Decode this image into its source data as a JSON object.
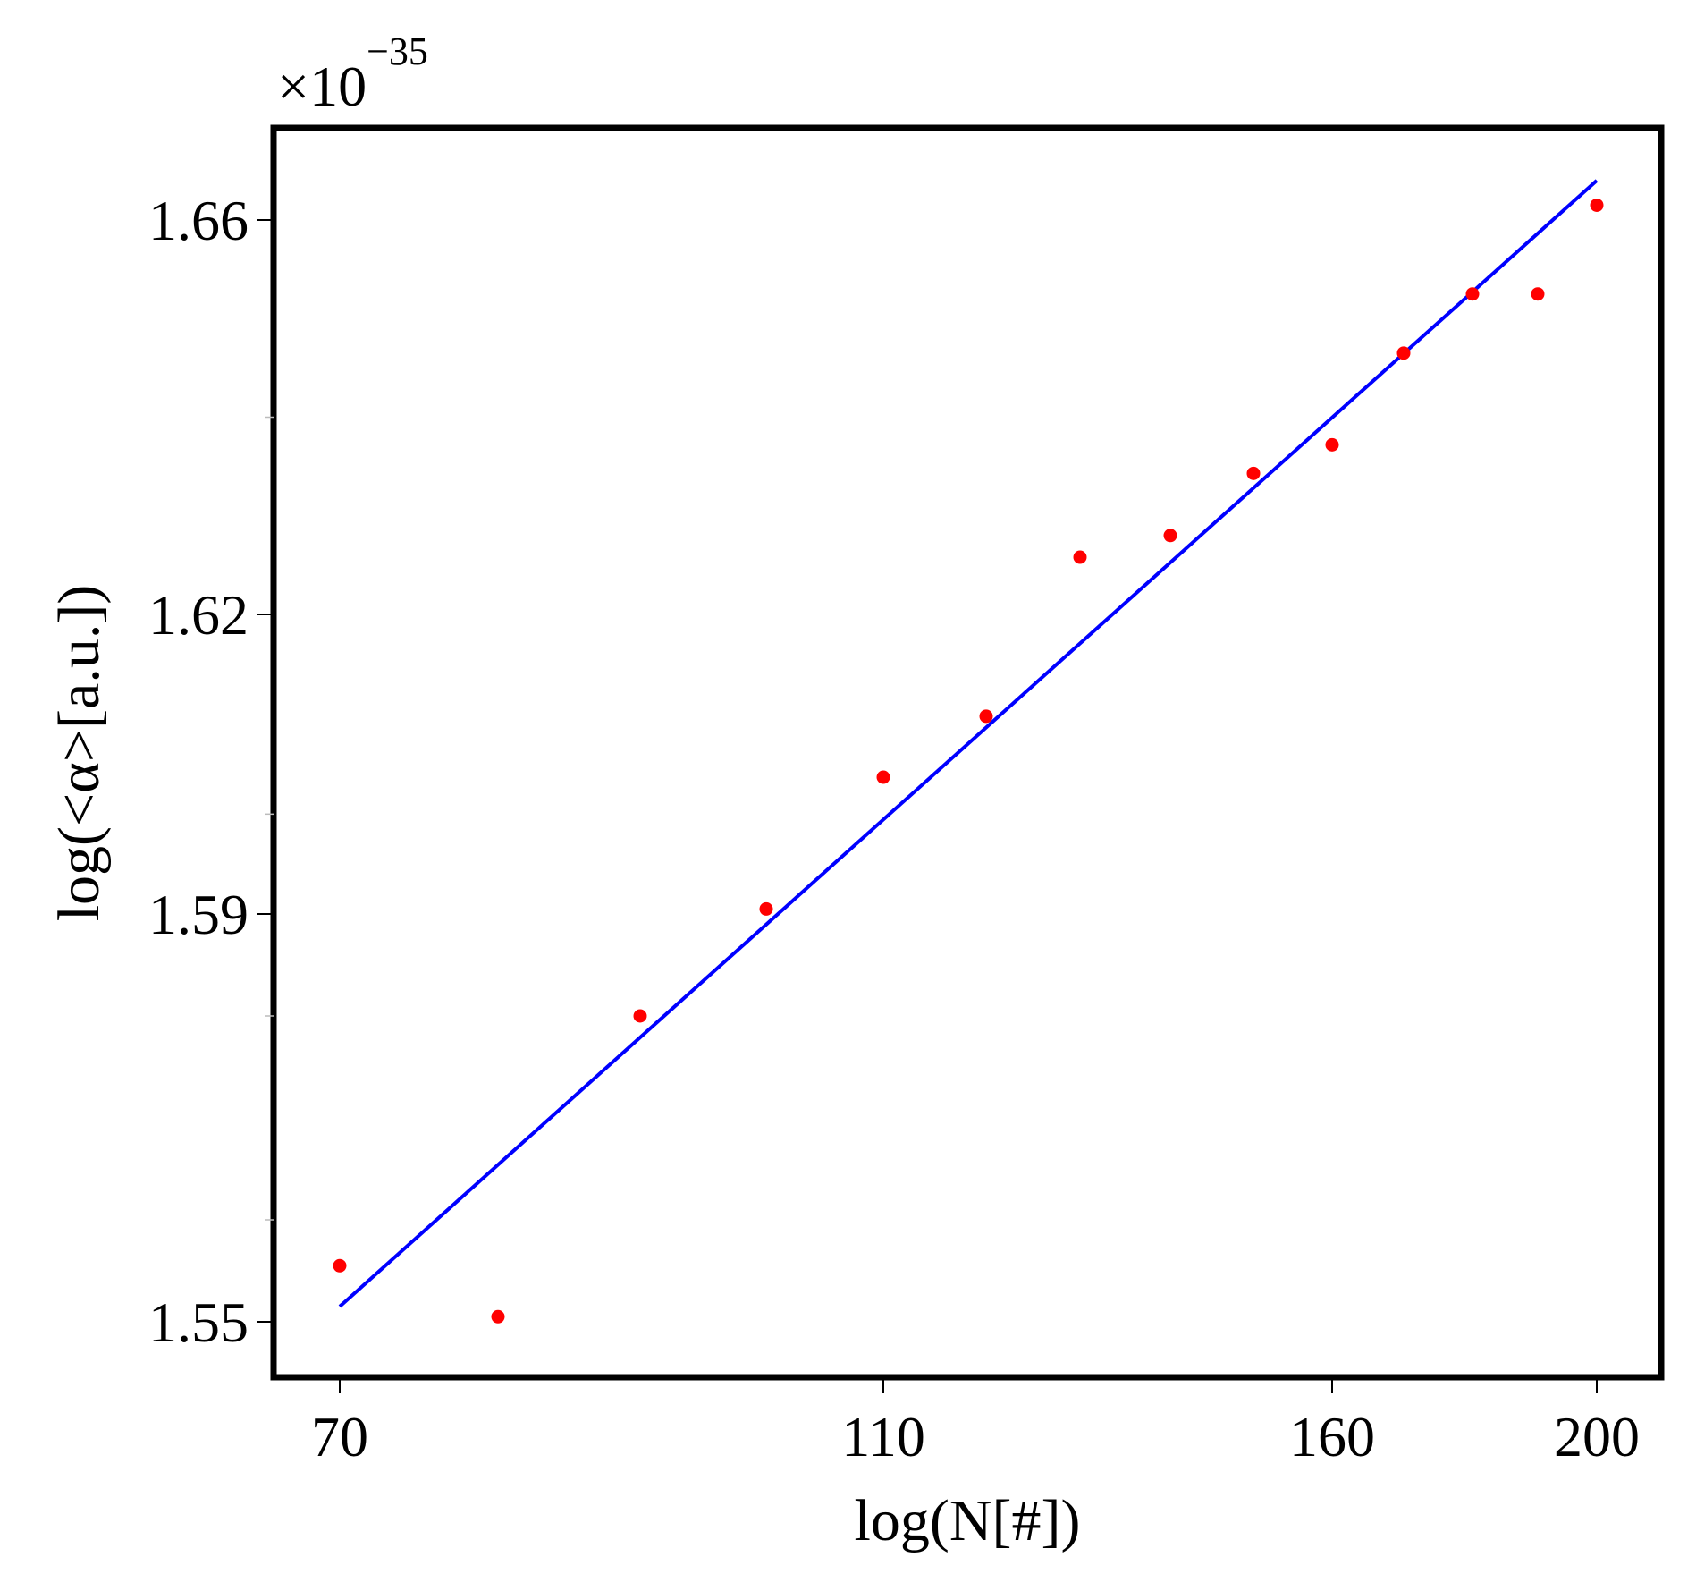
{
  "chart_data": {
    "type": "scatter",
    "title": "",
    "xlabel": "log(N[#])",
    "ylabel": "log(<α>[a.u.])",
    "y_multiplier": {
      "base": "×10",
      "exponent": "−35"
    },
    "x_tick_values": [
      70,
      110,
      160,
      200
    ],
    "x_ticks": [
      "70",
      "110",
      "160",
      "200"
    ],
    "y_tick_values": [
      1.55,
      1.59,
      1.62,
      1.66
    ],
    "y_ticks": [
      "1.55",
      "1.59",
      "1.62",
      "1.66"
    ],
    "y_minor_tick_values": [
      1.56,
      1.58,
      1.6,
      1.64
    ],
    "grid": false,
    "legend": "none",
    "series": [
      {
        "kind": "points",
        "color": "#ff0000",
        "points": [
          {
            "x": 70,
            "y": 1.5555
          },
          {
            "x": 82,
            "y": 1.5505
          },
          {
            "x": 92,
            "y": 1.58
          },
          {
            "x": 100,
            "y": 1.5905
          },
          {
            "x": 110,
            "y": 1.6037
          },
          {
            "x": 120,
            "y": 1.6098
          },
          {
            "x": 130,
            "y": 1.6258
          },
          {
            "x": 140,
            "y": 1.628
          },
          {
            "x": 150,
            "y": 1.6343
          },
          {
            "x": 160,
            "y": 1.6372
          },
          {
            "x": 170,
            "y": 1.6465
          },
          {
            "x": 180,
            "y": 1.6525
          },
          {
            "x": 190,
            "y": 1.6525
          },
          {
            "x": 200,
            "y": 1.6615
          }
        ]
      },
      {
        "kind": "fit-line",
        "color": "#0000ff",
        "points": [
          {
            "x": 70,
            "y": 1.5515
          },
          {
            "x": 200,
            "y": 1.664
          }
        ]
      }
    ]
  }
}
